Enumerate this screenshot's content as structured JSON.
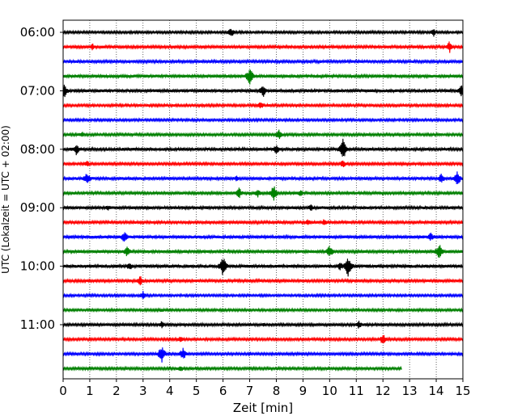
{
  "chart_data": {
    "type": "line",
    "title": "",
    "xlabel": "Zeit  [min]",
    "ylabel": "UTC (Lokalzeit = UTC + 02:00)",
    "xlim": [
      0,
      15
    ],
    "x_ticks": [
      0,
      1,
      2,
      3,
      4,
      5,
      6,
      7,
      8,
      9,
      10,
      11,
      12,
      13,
      14,
      15
    ],
    "x_tick_labels": [
      "0",
      "1",
      "2",
      "3",
      "4",
      "5",
      "6",
      "7",
      "8",
      "9",
      "10",
      "11",
      "12",
      "13",
      "14",
      "15"
    ],
    "x_grid": true,
    "grid_style": "dotted",
    "minutes_per_trace": 15,
    "y_tick_labels": [
      "06:00",
      "07:00",
      "08:00",
      "09:00",
      "10:00",
      "11:00"
    ],
    "y_tick_trace_index": [
      0,
      4,
      8,
      12,
      16,
      20
    ],
    "trace_colors": [
      "#000000",
      "#ff0000",
      "#0000ff",
      "#008000"
    ],
    "traces": [
      {
        "start": "06:00",
        "end_min": 15,
        "amp": 1.2,
        "events": [
          {
            "t": 6.3,
            "a": 7
          },
          {
            "t": 11.5,
            "a": 2
          },
          {
            "t": 13.9,
            "a": 6
          }
        ]
      },
      {
        "start": "06:15",
        "end_min": 15,
        "amp": 1.4,
        "events": [
          {
            "t": 1.1,
            "a": 5
          },
          {
            "t": 14.5,
            "a": 8
          }
        ]
      },
      {
        "start": "06:30",
        "end_min": 15,
        "amp": 1.4,
        "events": [
          {
            "t": 4.0,
            "a": 2
          }
        ]
      },
      {
        "start": "06:45",
        "end_min": 15,
        "amp": 1.5,
        "events": [
          {
            "t": 7.0,
            "a": 12
          }
        ]
      },
      {
        "start": "07:00",
        "end_min": 15,
        "amp": 1.6,
        "events": [
          {
            "t": 0.05,
            "a": 9
          },
          {
            "t": 7.5,
            "a": 9
          },
          {
            "t": 14.95,
            "a": 9
          }
        ]
      },
      {
        "start": "07:15",
        "end_min": 15,
        "amp": 1.3,
        "events": [
          {
            "t": 7.4,
            "a": 6
          }
        ]
      },
      {
        "start": "07:30",
        "end_min": 15,
        "amp": 1.2,
        "events": []
      },
      {
        "start": "07:45",
        "end_min": 15,
        "amp": 1.3,
        "events": [
          {
            "t": 0.7,
            "a": 5
          },
          {
            "t": 8.1,
            "a": 8
          }
        ]
      },
      {
        "start": "08:00",
        "end_min": 15,
        "amp": 1.5,
        "events": [
          {
            "t": 0.5,
            "a": 8
          },
          {
            "t": 8.0,
            "a": 7
          },
          {
            "t": 10.5,
            "a": 16
          }
        ]
      },
      {
        "start": "08:15",
        "end_min": 15,
        "amp": 1.3,
        "events": [
          {
            "t": 0.9,
            "a": 5
          },
          {
            "t": 10.5,
            "a": 6
          }
        ]
      },
      {
        "start": "08:30",
        "end_min": 15,
        "amp": 1.5,
        "events": [
          {
            "t": 0.9,
            "a": 9
          },
          {
            "t": 6.5,
            "a": 4
          },
          {
            "t": 14.2,
            "a": 8
          },
          {
            "t": 14.8,
            "a": 10
          }
        ]
      },
      {
        "start": "08:45",
        "end_min": 15,
        "amp": 1.4,
        "events": [
          {
            "t": 6.6,
            "a": 8
          },
          {
            "t": 7.3,
            "a": 7
          },
          {
            "t": 7.9,
            "a": 11
          },
          {
            "t": 8.9,
            "a": 5
          }
        ]
      },
      {
        "start": "09:00",
        "end_min": 15,
        "amp": 1.5,
        "events": [
          {
            "t": 1.7,
            "a": 4
          },
          {
            "t": 9.3,
            "a": 5
          }
        ]
      },
      {
        "start": "09:15",
        "end_min": 15,
        "amp": 1.4,
        "events": [
          {
            "t": 9.2,
            "a": 5
          },
          {
            "t": 9.8,
            "a": 5
          }
        ]
      },
      {
        "start": "09:30",
        "end_min": 15,
        "amp": 1.6,
        "events": [
          {
            "t": 2.3,
            "a": 8
          },
          {
            "t": 13.8,
            "a": 7
          }
        ]
      },
      {
        "start": "09:45",
        "end_min": 15,
        "amp": 1.5,
        "events": [
          {
            "t": 2.4,
            "a": 8
          },
          {
            "t": 10.0,
            "a": 9
          },
          {
            "t": 14.1,
            "a": 12
          }
        ]
      },
      {
        "start": "10:00",
        "end_min": 15,
        "amp": 1.6,
        "events": [
          {
            "t": 2.5,
            "a": 6
          },
          {
            "t": 6.0,
            "a": 14
          },
          {
            "t": 10.4,
            "a": 6
          },
          {
            "t": 10.7,
            "a": 15
          }
        ]
      },
      {
        "start": "10:15",
        "end_min": 15,
        "amp": 1.4,
        "events": [
          {
            "t": 2.9,
            "a": 7
          }
        ]
      },
      {
        "start": "10:30",
        "end_min": 15,
        "amp": 1.2,
        "events": [
          {
            "t": 3.0,
            "a": 6
          }
        ]
      },
      {
        "start": "10:45",
        "end_min": 15,
        "amp": 1.2,
        "events": [
          {
            "t": 3.7,
            "a": 3
          }
        ]
      },
      {
        "start": "11:00",
        "end_min": 15,
        "amp": 1.4,
        "events": [
          {
            "t": 3.7,
            "a": 5
          },
          {
            "t": 7.5,
            "a": 3
          },
          {
            "t": 11.1,
            "a": 6
          }
        ]
      },
      {
        "start": "11:15",
        "end_min": 15,
        "amp": 1.3,
        "events": [
          {
            "t": 4.4,
            "a": 5
          },
          {
            "t": 12.0,
            "a": 8
          }
        ]
      },
      {
        "start": "11:30",
        "end_min": 15,
        "amp": 1.3,
        "events": [
          {
            "t": 3.7,
            "a": 12
          },
          {
            "t": 4.5,
            "a": 9
          }
        ]
      },
      {
        "start": "11:45",
        "end_min": 12.7,
        "amp": 1.3,
        "events": [
          {
            "t": 4.4,
            "a": 5
          }
        ]
      }
    ]
  }
}
